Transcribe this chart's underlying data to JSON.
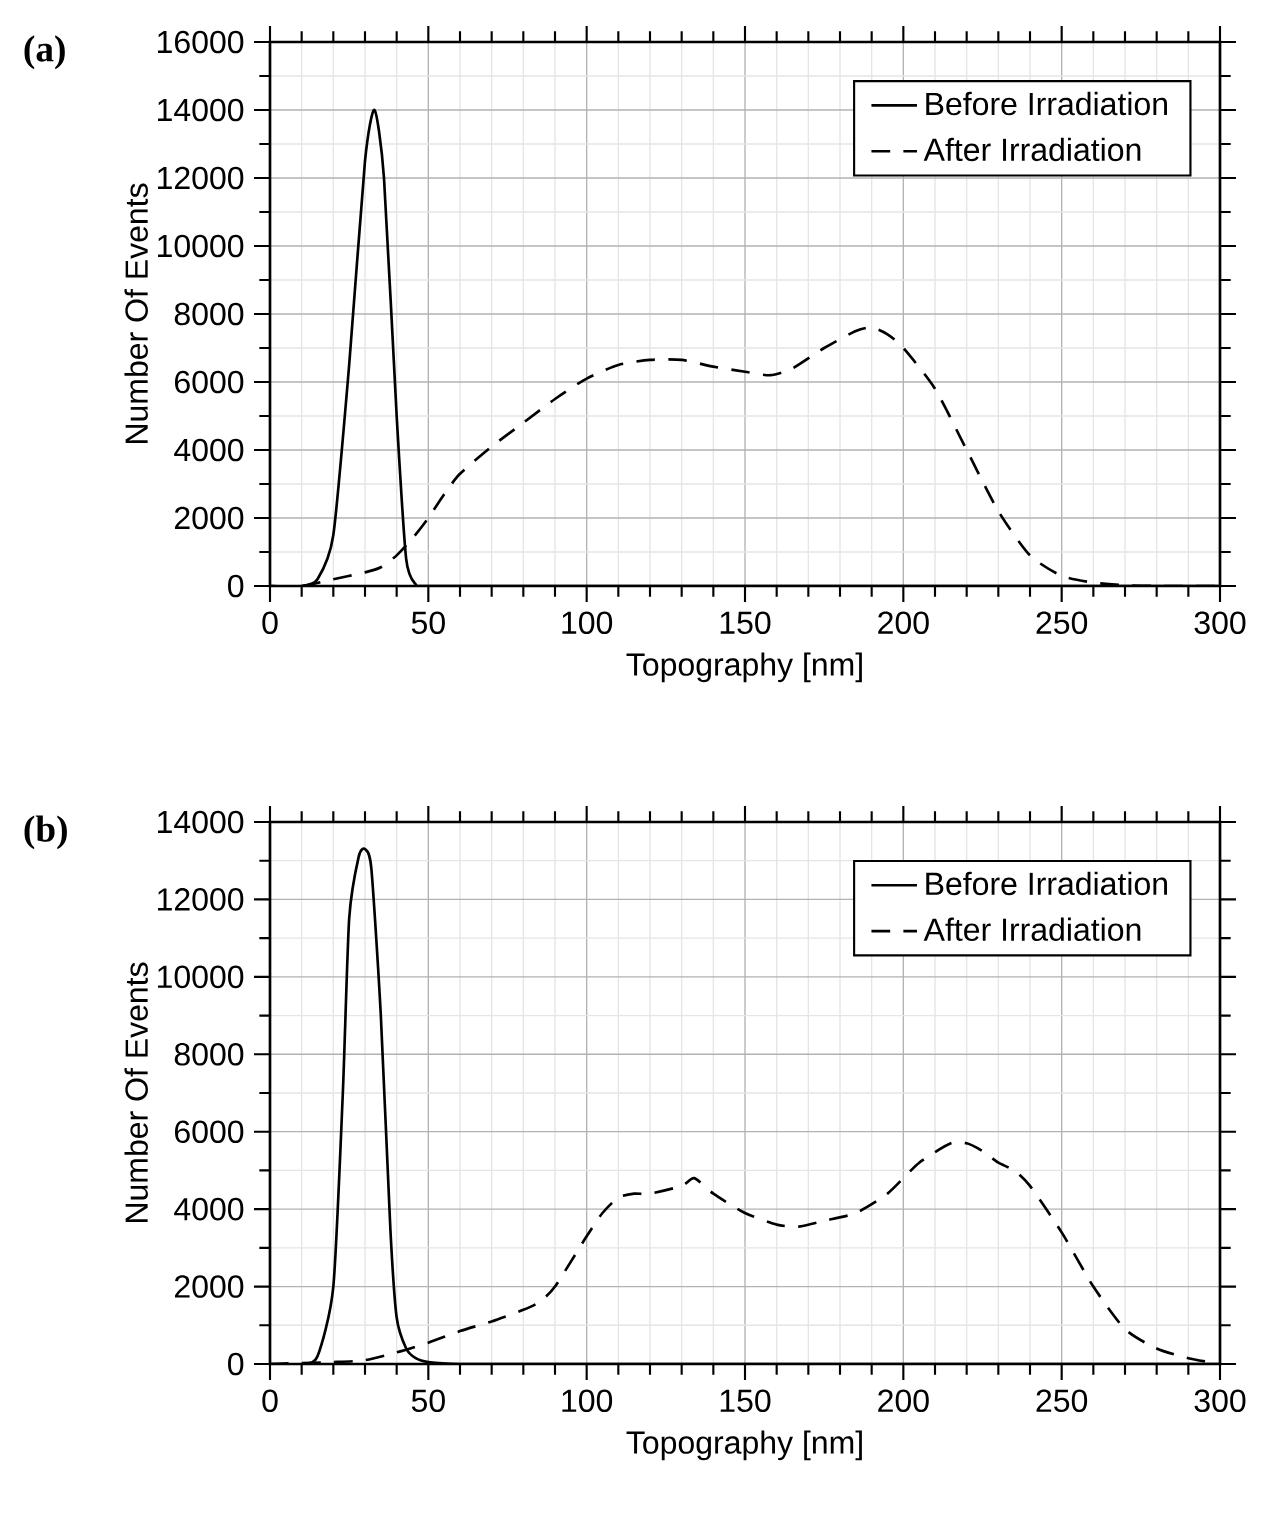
{
  "chart_data": [
    {
      "type": "line",
      "title": "(a)",
      "xlabel": "Topography [nm]",
      "ylabel": "Number Of Events",
      "xlim": [
        0,
        300
      ],
      "ylim": [
        0,
        16000
      ],
      "xticks": [
        0,
        50,
        100,
        150,
        200,
        250,
        300
      ],
      "yticks": [
        0,
        2000,
        4000,
        6000,
        8000,
        10000,
        12000,
        14000,
        16000
      ],
      "grid": true,
      "legend": "top right",
      "marker": "none",
      "series": [
        {
          "name": "Before Irradiation",
          "color": "#000000",
          "line_style": "solid",
          "x": [
            0,
            10,
            15,
            20,
            25,
            30,
            33,
            36,
            40,
            43,
            46,
            50,
            100,
            200,
            300
          ],
          "values": [
            0,
            0,
            200,
            1500,
            6500,
            12500,
            14000,
            12000,
            5000,
            800,
            50,
            0,
            0,
            0,
            0
          ]
        },
        {
          "name": "After Irradiation",
          "color": "#000000",
          "line_style": "dashed",
          "x": [
            0,
            10,
            20,
            30,
            35,
            40,
            45,
            50,
            55,
            60,
            70,
            80,
            90,
            100,
            110,
            120,
            130,
            140,
            150,
            158,
            165,
            175,
            185,
            190,
            195,
            200,
            210,
            220,
            230,
            240,
            250,
            260,
            270,
            280,
            300
          ],
          "values": [
            0,
            0,
            200,
            400,
            550,
            900,
            1400,
            2000,
            2700,
            3300,
            4100,
            4800,
            5500,
            6100,
            6500,
            6650,
            6650,
            6450,
            6300,
            6200,
            6400,
            7000,
            7500,
            7600,
            7400,
            7000,
            5800,
            4000,
            2200,
            900,
            300,
            100,
            20,
            0,
            0
          ]
        }
      ]
    },
    {
      "type": "line",
      "title": "(b)",
      "xlabel": "Topography [nm]",
      "ylabel": "Number Of Events",
      "xlim": [
        0,
        300
      ],
      "ylim": [
        0,
        14000
      ],
      "xticks": [
        0,
        50,
        100,
        150,
        200,
        250,
        300
      ],
      "yticks": [
        0,
        2000,
        4000,
        6000,
        8000,
        10000,
        12000,
        14000
      ],
      "grid": true,
      "legend": "top right",
      "marker": "none",
      "series": [
        {
          "name": "Before Irradiation",
          "color": "#000000",
          "line_style": "solid",
          "x": [
            0,
            10,
            15,
            20,
            23,
            25,
            28,
            30,
            32,
            35,
            38,
            40,
            43,
            46,
            50,
            60,
            100,
            200,
            300
          ],
          "values": [
            0,
            0,
            200,
            2000,
            7000,
            11500,
            13100,
            13300,
            12800,
            9000,
            3500,
            1200,
            400,
            150,
            50,
            0,
            0,
            0,
            0
          ]
        },
        {
          "name": "After Irradiation",
          "color": "#000000",
          "line_style": "dashed",
          "x": [
            0,
            20,
            30,
            40,
            50,
            60,
            70,
            80,
            85,
            90,
            100,
            105,
            110,
            115,
            120,
            130,
            134,
            140,
            150,
            160,
            167,
            175,
            185,
            195,
            205,
            215,
            220,
            225,
            230,
            235,
            240,
            250,
            260,
            270,
            280,
            290,
            300
          ],
          "values": [
            0,
            50,
            100,
            300,
            550,
            850,
            1100,
            1400,
            1600,
            2000,
            3300,
            3900,
            4300,
            4400,
            4400,
            4600,
            4800,
            4400,
            3900,
            3600,
            3550,
            3700,
            3900,
            4400,
            5200,
            5700,
            5700,
            5500,
            5200,
            5000,
            4600,
            3400,
            2000,
            900,
            400,
            150,
            0
          ]
        }
      ]
    }
  ]
}
